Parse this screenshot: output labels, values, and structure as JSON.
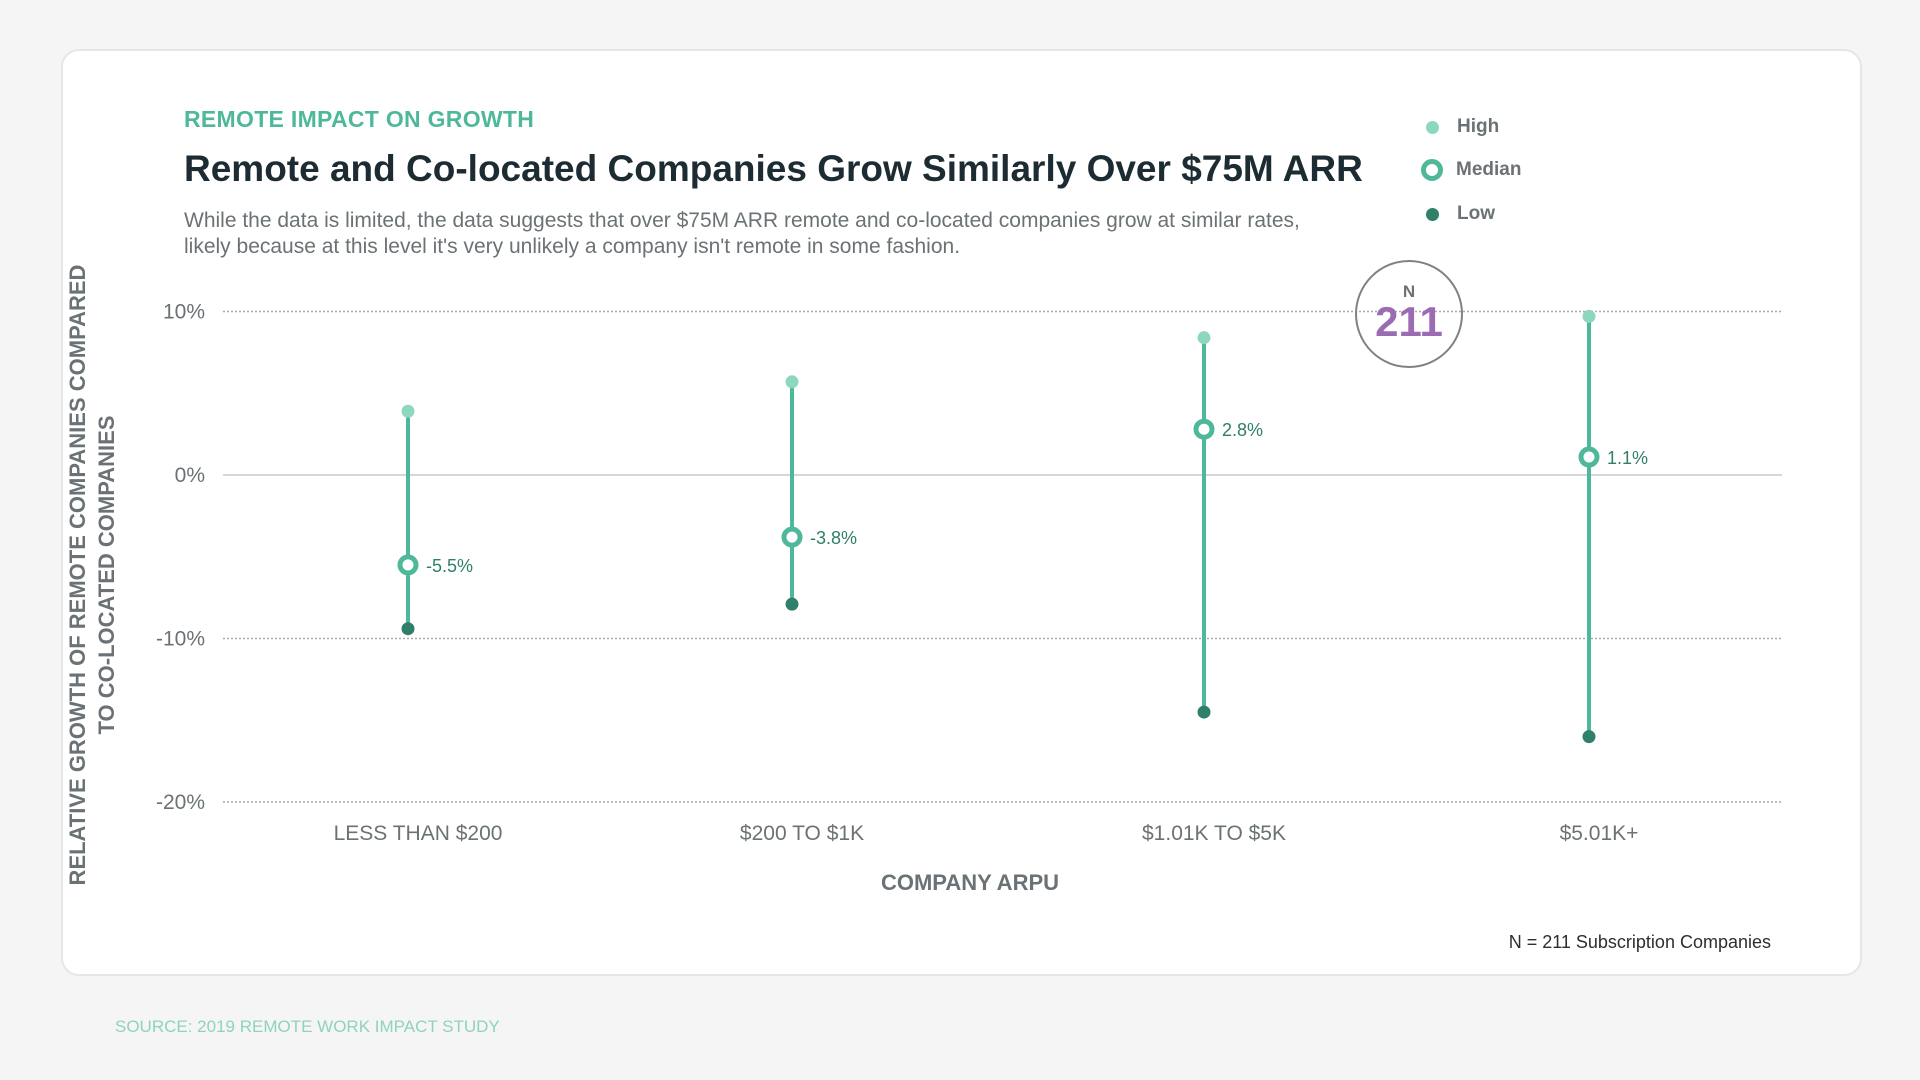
{
  "eyebrow": "REMOTE IMPACT ON GROWTH",
  "title": "Remote and Co-located Companies Grow Similarly Over $75M ARR",
  "description": "While the data is limited, the data suggests that over $75M ARR remote and co-located companies grow at similar rates, likely because at this level it's very unlikely a company isn't remote in some fashion.",
  "n_badge": {
    "label": "N",
    "value": "211"
  },
  "footnote": "N = 211 Subscription Companies",
  "source": "SOURCE: 2019 REMOTE WORK IMPACT STUDY",
  "colors": {
    "high": "#8dd7bf",
    "median": "#4fb89b",
    "low": "#2f7f6b",
    "accent": "#4fb89b",
    "badge": "#9b6bb3"
  },
  "chart_data": {
    "type": "range",
    "xlabel": "COMPANY ARPU",
    "ylabel_lines": [
      "RELATIVE GROWTH OF REMOTE COMPANIES COMPARED",
      "TO CO-LOCATED COMPANIES"
    ],
    "ylim": [
      -20,
      10
    ],
    "yticks": [
      10,
      0,
      -10,
      -20
    ],
    "ytick_labels": [
      "10%",
      "0%",
      "-10%",
      "-20%"
    ],
    "grid": true,
    "legend": {
      "placement": "top-right",
      "entries": [
        "High",
        "Median",
        "Low"
      ]
    },
    "categories": [
      "LESS THAN $200",
      "$200 TO $1K",
      "$1.01K TO $5K",
      "$5.01K+"
    ],
    "series": [
      {
        "name": "High",
        "values": [
          3.9,
          5.7,
          8.4,
          9.7
        ]
      },
      {
        "name": "Median",
        "values": [
          -5.5,
          -3.8,
          2.8,
          1.1
        ]
      },
      {
        "name": "Low",
        "values": [
          -9.4,
          -7.9,
          -14.5,
          -16.0
        ]
      }
    ],
    "median_labels": [
      "-5.5%",
      "-3.8%",
      "2.8%",
      "1.1%"
    ]
  }
}
